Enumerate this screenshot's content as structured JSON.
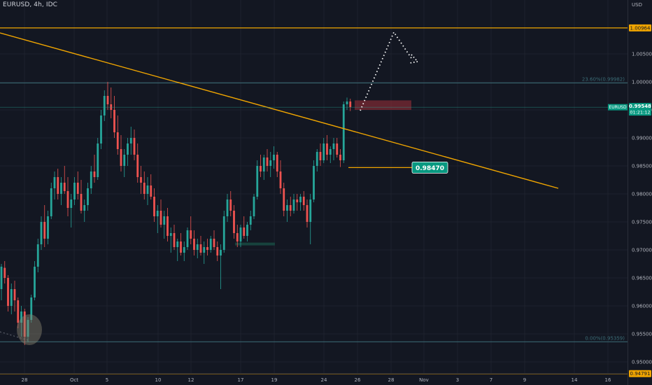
{
  "header": {
    "symbol_title": "EURUSD, 4h, IDC",
    "currency": "USD"
  },
  "colors": {
    "background": "#131722",
    "grid": "#1e222d",
    "up_candle": "#26a69a",
    "down_candle": "#ef5350",
    "trendline": "#f0a500",
    "level_line": "#f0a500",
    "fib_line": "#3c6e78",
    "price_badge": "#089981",
    "supply_zone": "#7b2a33",
    "demand_zone": "#17423d",
    "projection": "#ffffff"
  },
  "chart_data": {
    "type": "candlestick",
    "symbol": "EURUSD",
    "timeframe": "4h",
    "source": "IDC",
    "y_axis": {
      "unit": "USD",
      "range": [
        0.9465,
        1.016
      ],
      "ticks": [
        "1.00500",
        "1.00000",
        "0.99500",
        "0.99000",
        "0.98500",
        "0.98000",
        "0.97500",
        "0.97000",
        "0.96500",
        "0.96000",
        "0.95500",
        "0.95000"
      ]
    },
    "x_axis": {
      "ticks": [
        "28",
        "Oct",
        "5",
        "10",
        "12",
        "17",
        "19",
        "24",
        "26",
        "28",
        "Nov",
        "3",
        "7",
        "9",
        "14",
        "16"
      ]
    },
    "candles_ohlc": [
      [
        0.963,
        0.9675,
        0.961,
        0.967
      ],
      [
        0.9668,
        0.968,
        0.964,
        0.965
      ],
      [
        0.965,
        0.9655,
        0.959,
        0.96
      ],
      [
        0.96,
        0.964,
        0.9585,
        0.963
      ],
      [
        0.963,
        0.9645,
        0.959,
        0.961
      ],
      [
        0.961,
        0.9615,
        0.956,
        0.957
      ],
      [
        0.957,
        0.96,
        0.9545,
        0.959
      ],
      [
        0.959,
        0.9595,
        0.953,
        0.9545
      ],
      [
        0.9545,
        0.958,
        0.9535,
        0.9575
      ],
      [
        0.9575,
        0.962,
        0.957,
        0.9615
      ],
      [
        0.9615,
        0.968,
        0.961,
        0.967
      ],
      [
        0.967,
        0.972,
        0.966,
        0.971
      ],
      [
        0.971,
        0.976,
        0.97,
        0.975
      ],
      [
        0.975,
        0.978,
        0.9705,
        0.972
      ],
      [
        0.972,
        0.977,
        0.971,
        0.976
      ],
      [
        0.976,
        0.982,
        0.9755,
        0.981
      ],
      [
        0.981,
        0.984,
        0.979,
        0.983
      ],
      [
        0.983,
        0.9845,
        0.979,
        0.98
      ],
      [
        0.98,
        0.983,
        0.978,
        0.982
      ],
      [
        0.982,
        0.985,
        0.98,
        0.9805
      ],
      [
        0.9805,
        0.983,
        0.976,
        0.9775
      ],
      [
        0.9775,
        0.98,
        0.974,
        0.979
      ],
      [
        0.979,
        0.983,
        0.978,
        0.982
      ],
      [
        0.982,
        0.984,
        0.979,
        0.98
      ],
      [
        0.98,
        0.9825,
        0.9765,
        0.977
      ],
      [
        0.977,
        0.979,
        0.975,
        0.978
      ],
      [
        0.978,
        0.982,
        0.977,
        0.981
      ],
      [
        0.981,
        0.985,
        0.98,
        0.984
      ],
      [
        0.984,
        0.987,
        0.982,
        0.983
      ],
      [
        0.983,
        0.99,
        0.9825,
        0.989
      ],
      [
        0.989,
        0.995,
        0.988,
        0.994
      ],
      [
        0.994,
        0.9985,
        0.993,
        0.9975
      ],
      [
        0.9975,
        1.0,
        0.995,
        0.996
      ],
      [
        0.996,
        0.999,
        0.9935,
        0.995
      ],
      [
        0.995,
        0.9975,
        0.99,
        0.991
      ],
      [
        0.991,
        0.994,
        0.987,
        0.988
      ],
      [
        0.988,
        0.9905,
        0.984,
        0.985
      ],
      [
        0.985,
        0.988,
        0.983,
        0.987
      ],
      [
        0.987,
        0.99,
        0.985,
        0.989
      ],
      [
        0.989,
        0.992,
        0.987,
        0.99
      ],
      [
        0.99,
        0.9915,
        0.986,
        0.987
      ],
      [
        0.987,
        0.989,
        0.982,
        0.983
      ],
      [
        0.983,
        0.985,
        0.98,
        0.982
      ],
      [
        0.982,
        0.984,
        0.979,
        0.98
      ],
      [
        0.98,
        0.983,
        0.978,
        0.9815
      ],
      [
        0.9815,
        0.9835,
        0.979,
        0.9795
      ],
      [
        0.9795,
        0.981,
        0.975,
        0.976
      ],
      [
        0.976,
        0.978,
        0.973,
        0.977
      ],
      [
        0.977,
        0.979,
        0.974,
        0.9745
      ],
      [
        0.9745,
        0.977,
        0.972,
        0.976
      ],
      [
        0.976,
        0.9775,
        0.9715,
        0.9725
      ],
      [
        0.9725,
        0.974,
        0.9695,
        0.973
      ],
      [
        0.973,
        0.9745,
        0.97,
        0.9705
      ],
      [
        0.9705,
        0.972,
        0.968,
        0.9715
      ],
      [
        0.9715,
        0.973,
        0.969,
        0.9695
      ],
      [
        0.9695,
        0.9715,
        0.968,
        0.9705
      ],
      [
        0.9705,
        0.974,
        0.97,
        0.9735
      ],
      [
        0.9735,
        0.976,
        0.971,
        0.972
      ],
      [
        0.972,
        0.9735,
        0.969,
        0.97
      ],
      [
        0.97,
        0.972,
        0.9685,
        0.971
      ],
      [
        0.971,
        0.9725,
        0.969,
        0.9695
      ],
      [
        0.9695,
        0.9715,
        0.9675,
        0.9705
      ],
      [
        0.9705,
        0.972,
        0.969,
        0.97
      ],
      [
        0.97,
        0.9725,
        0.9695,
        0.972
      ],
      [
        0.972,
        0.9735,
        0.97,
        0.9705
      ],
      [
        0.9705,
        0.9715,
        0.968,
        0.969
      ],
      [
        0.969,
        0.971,
        0.963,
        0.97
      ],
      [
        0.97,
        0.977,
        0.9695,
        0.976
      ],
      [
        0.976,
        0.98,
        0.975,
        0.979
      ],
      [
        0.979,
        0.9805,
        0.976,
        0.977
      ],
      [
        0.977,
        0.978,
        0.972,
        0.973
      ],
      [
        0.973,
        0.9745,
        0.9705,
        0.9715
      ],
      [
        0.9715,
        0.9745,
        0.9705,
        0.974
      ],
      [
        0.974,
        0.976,
        0.972,
        0.9725
      ],
      [
        0.9725,
        0.975,
        0.9715,
        0.9745
      ],
      [
        0.9745,
        0.977,
        0.9735,
        0.976
      ],
      [
        0.976,
        0.98,
        0.9755,
        0.9795
      ],
      [
        0.9795,
        0.986,
        0.979,
        0.985
      ],
      [
        0.985,
        0.987,
        0.983,
        0.984
      ],
      [
        0.984,
        0.987,
        0.9825,
        0.9865
      ],
      [
        0.9865,
        0.988,
        0.984,
        0.985
      ],
      [
        0.985,
        0.9875,
        0.983,
        0.986
      ],
      [
        0.986,
        0.9885,
        0.9845,
        0.987
      ],
      [
        0.987,
        0.9875,
        0.983,
        0.984
      ],
      [
        0.984,
        0.986,
        0.98,
        0.981
      ],
      [
        0.981,
        0.982,
        0.976,
        0.977
      ],
      [
        0.977,
        0.979,
        0.975,
        0.978
      ],
      [
        0.978,
        0.9795,
        0.976,
        0.977
      ],
      [
        0.977,
        0.98,
        0.9765,
        0.979
      ],
      [
        0.979,
        0.98,
        0.977,
        0.9785
      ],
      [
        0.9785,
        0.98,
        0.977,
        0.9795
      ],
      [
        0.9795,
        0.9805,
        0.977,
        0.978
      ],
      [
        0.978,
        0.979,
        0.974,
        0.975
      ],
      [
        0.975,
        0.98,
        0.971,
        0.979
      ],
      [
        0.979,
        0.986,
        0.9785,
        0.985
      ],
      [
        0.985,
        0.988,
        0.984,
        0.9875
      ],
      [
        0.9875,
        0.989,
        0.985,
        0.986
      ],
      [
        0.986,
        0.99,
        0.9855,
        0.989
      ],
      [
        0.989,
        0.9905,
        0.986,
        0.987
      ],
      [
        0.987,
        0.9885,
        0.9855,
        0.988
      ],
      [
        0.988,
        0.99,
        0.986,
        0.989
      ],
      [
        0.989,
        0.99,
        0.9865,
        0.987
      ],
      [
        0.987,
        0.988,
        0.9848,
        0.986
      ],
      [
        0.986,
        0.9965,
        0.9855,
        0.996
      ],
      [
        0.996,
        0.9972,
        0.995,
        0.9965
      ],
      [
        0.9965,
        0.997,
        0.9948,
        0.9955
      ]
    ],
    "levels": [
      {
        "price": 1.00964,
        "label": "1.00964"
      },
      {
        "price": 0.94791,
        "label": "0.94791"
      }
    ],
    "fibonacci": [
      {
        "label": "23.60%(0.99982)",
        "price": 0.99982
      },
      {
        "label": "0.00%(0.95359)",
        "price": 0.95359
      }
    ],
    "current_price": {
      "symbol": "EURUSD",
      "price": "0.99548",
      "countdown": "01:21:12"
    },
    "annotation_price": "0.98470"
  }
}
